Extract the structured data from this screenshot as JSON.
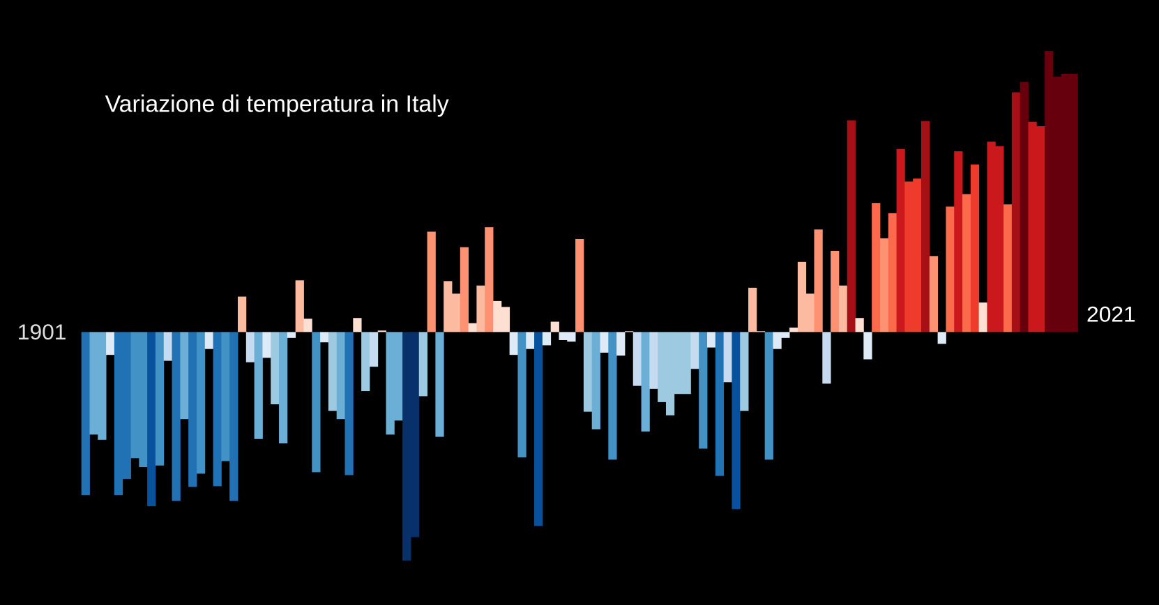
{
  "chart_data": {
    "type": "bar",
    "title": "Variazione di temperatura in Italy",
    "categories": [
      "1901",
      null,
      null,
      null,
      null,
      null,
      null,
      null,
      null,
      null,
      null,
      null,
      null,
      null,
      null,
      null,
      null,
      null,
      null,
      null,
      null,
      null,
      null,
      null,
      null,
      null,
      null,
      null,
      null,
      null,
      null,
      null,
      null,
      null,
      null,
      null,
      null,
      null,
      null,
      null,
      null,
      null,
      null,
      null,
      null,
      null,
      null,
      null,
      null,
      null,
      null,
      null,
      null,
      null,
      null,
      null,
      null,
      null,
      null,
      null,
      null,
      null,
      null,
      null,
      null,
      null,
      null,
      null,
      null,
      null,
      null,
      null,
      null,
      null,
      null,
      null,
      null,
      null,
      null,
      null,
      null,
      null,
      null,
      null,
      null,
      null,
      null,
      null,
      null,
      null,
      null,
      null,
      null,
      null,
      null,
      null,
      null,
      null,
      null,
      null,
      null,
      null,
      null,
      null,
      null,
      null,
      null,
      null,
      null,
      null,
      null,
      null,
      null,
      null,
      null,
      null,
      null,
      null,
      null,
      null,
      "2021"
    ],
    "values": [
      -221,
      -139,
      -146,
      -31,
      -221,
      -199,
      -171,
      -183,
      -236,
      -181,
      -39,
      -229,
      -118,
      -210,
      -192,
      -23,
      -209,
      -175,
      -229,
      48,
      -41,
      -145,
      -35,
      -98,
      -151,
      -8,
      70,
      18,
      -190,
      -14,
      -107,
      -118,
      -194,
      19,
      -80,
      -47,
      2,
      -139,
      -120,
      -310,
      -278,
      -87,
      136,
      -142,
      69,
      52,
      115,
      12,
      63,
      142,
      42,
      34,
      -31,
      -170,
      -23,
      -263,
      -18,
      14,
      -11,
      -13,
      126,
      -108,
      -132,
      -28,
      -173,
      -32,
      1,
      -73,
      -135,
      -77,
      -95,
      -113,
      -84,
      -84,
      -50,
      -158,
      -21,
      -195,
      -68,
      -240,
      -107,
      60,
      1,
      -173,
      -23,
      -8,
      6,
      95,
      52,
      139,
      -70,
      110,
      63,
      287,
      19,
      -37,
      175,
      127,
      161,
      248,
      204,
      208,
      286,
      103,
      -16,
      170,
      245,
      187,
      227,
      40,
      258,
      252,
      173,
      325,
      339,
      285,
      279,
      381,
      346,
      350,
      350
    ],
    "ylim": [
      -330,
      390
    ],
    "colors_negative": [
      "#deebf7",
      "#c6dbef",
      "#9ecae1",
      "#6baed6",
      "#4292c6",
      "#2171b5",
      "#08519c",
      "#08306b"
    ],
    "colors_positive": [
      "#fee0d2",
      "#fcbba1",
      "#fc9272",
      "#fb6a4a",
      "#ef3b2c",
      "#cb181d",
      "#a50f15",
      "#67000d"
    ]
  }
}
